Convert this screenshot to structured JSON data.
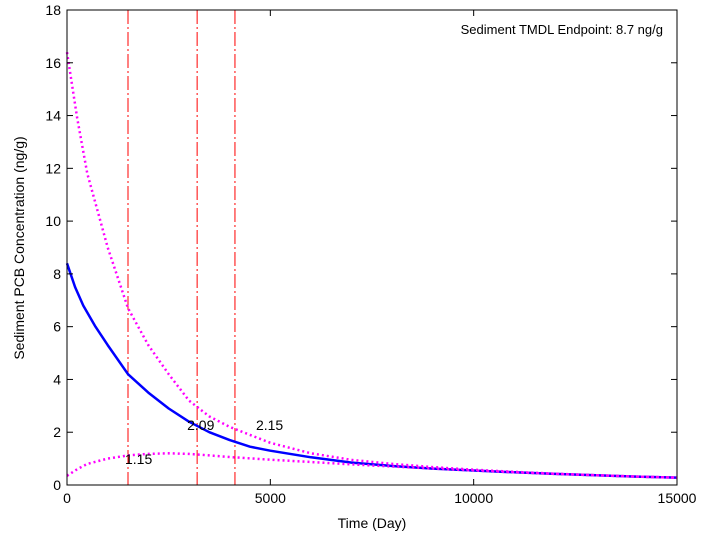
{
  "chart_data": {
    "type": "line",
    "title": "",
    "xlabel": "Time (Day)",
    "ylabel": "Sediment PCB Concentration (ng/g)",
    "xlim": [
      0,
      15000
    ],
    "ylim": [
      0,
      18
    ],
    "xticks": [
      0,
      5000,
      10000,
      15000
    ],
    "yticks": [
      0,
      2,
      4,
      6,
      8,
      10,
      12,
      14,
      16,
      18
    ],
    "grid": false,
    "annotation": "Sediment TMDL Endpoint:  8.7 ng/g",
    "series": [
      {
        "color": "#0000ff",
        "style": "solid",
        "x": [
          0,
          200,
          400,
          700,
          1000,
          1500,
          2000,
          2500,
          3000,
          3500,
          4000,
          4500,
          5000,
          6000,
          7000,
          8000,
          9000,
          10000,
          11000,
          12000,
          13000,
          14000,
          15000
        ],
        "y": [
          8.4,
          7.5,
          6.8,
          6.0,
          5.3,
          4.2,
          3.5,
          2.9,
          2.4,
          2.0,
          1.7,
          1.45,
          1.3,
          1.05,
          0.85,
          0.72,
          0.62,
          0.55,
          0.48,
          0.42,
          0.37,
          0.32,
          0.28
        ]
      },
      {
        "color": "#ff00ff",
        "style": "dotted",
        "x": [
          0,
          250,
          500,
          1000,
          1500,
          2000,
          2500,
          3000,
          3500,
          4000,
          4500,
          5000,
          6000,
          7000,
          8000,
          9000,
          10000,
          11000,
          12000,
          13000,
          14000,
          15000
        ],
        "y": [
          16.4,
          13.9,
          11.8,
          9.0,
          6.7,
          5.3,
          4.2,
          3.2,
          2.6,
          2.2,
          1.9,
          1.6,
          1.2,
          0.95,
          0.8,
          0.68,
          0.58,
          0.5,
          0.43,
          0.37,
          0.32,
          0.28
        ]
      },
      {
        "color": "#ff00ff",
        "style": "dotted",
        "x": [
          0,
          250,
          500,
          1000,
          1500,
          2000,
          2500,
          3000,
          3500,
          4000,
          5000,
          6000,
          7000,
          8000,
          9000,
          10000,
          11000,
          12000,
          13000,
          14000,
          15000
        ],
        "y": [
          0.35,
          0.6,
          0.8,
          1.0,
          1.12,
          1.18,
          1.2,
          1.18,
          1.12,
          1.06,
          0.96,
          0.87,
          0.78,
          0.7,
          0.62,
          0.55,
          0.48,
          0.42,
          0.37,
          0.32,
          0.28
        ]
      }
    ],
    "vlines": [
      {
        "x": 1500,
        "label": "1.15",
        "color": "#ff0000"
      },
      {
        "x": 3200,
        "label": "2.09",
        "color": "#ff0000"
      },
      {
        "x": 4130,
        "label": "2.15",
        "color": "#ff0000"
      }
    ]
  }
}
